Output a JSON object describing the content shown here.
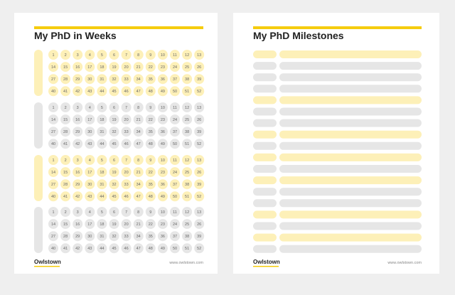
{
  "weeks_page": {
    "title": "My PhD in Weeks",
    "years": [
      {
        "weeks": [
          1,
          2,
          3,
          4,
          5,
          6,
          7,
          8,
          9,
          10,
          11,
          12,
          13,
          14,
          15,
          16,
          17,
          18,
          19,
          20,
          21,
          22,
          23,
          24,
          25,
          26,
          27,
          28,
          29,
          30,
          31,
          32,
          33,
          34,
          35,
          36,
          37,
          38,
          39,
          40,
          41,
          42,
          43,
          44,
          45,
          46,
          47,
          48,
          49,
          50,
          51,
          52
        ]
      },
      {
        "weeks": [
          1,
          2,
          3,
          4,
          5,
          6,
          7,
          8,
          9,
          10,
          11,
          12,
          13,
          14,
          15,
          16,
          17,
          18,
          19,
          20,
          21,
          22,
          23,
          24,
          25,
          26,
          27,
          28,
          29,
          30,
          31,
          32,
          33,
          34,
          35,
          36,
          37,
          38,
          39,
          40,
          41,
          42,
          43,
          44,
          45,
          46,
          47,
          48,
          49,
          50,
          51,
          52
        ]
      },
      {
        "weeks": [
          1,
          2,
          3,
          4,
          5,
          6,
          7,
          8,
          9,
          10,
          11,
          12,
          13,
          14,
          15,
          16,
          17,
          18,
          19,
          20,
          21,
          22,
          23,
          24,
          25,
          26,
          27,
          28,
          29,
          30,
          31,
          32,
          33,
          34,
          35,
          36,
          37,
          38,
          39,
          40,
          41,
          42,
          43,
          44,
          45,
          46,
          47,
          48,
          49,
          50,
          51,
          52
        ]
      },
      {
        "weeks": [
          1,
          2,
          3,
          4,
          5,
          6,
          7,
          8,
          9,
          10,
          11,
          12,
          13,
          14,
          15,
          16,
          17,
          18,
          19,
          20,
          21,
          22,
          23,
          24,
          25,
          26,
          27,
          28,
          29,
          30,
          31,
          32,
          33,
          34,
          35,
          36,
          37,
          38,
          39,
          40,
          41,
          42,
          43,
          44,
          45,
          46,
          47,
          48,
          49,
          50,
          51,
          52
        ]
      }
    ],
    "brand": "Owlstown",
    "url": "www.owlstown.com"
  },
  "milestones_page": {
    "title": "My PhD Milestones",
    "brand": "Owlstown",
    "url": "www.owlstown.com"
  }
}
